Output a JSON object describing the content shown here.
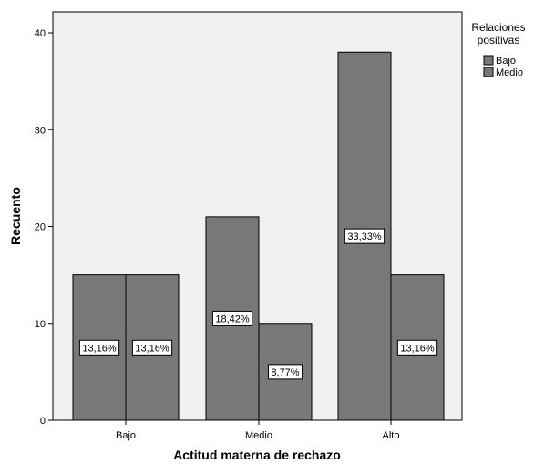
{
  "chart_data": {
    "type": "bar",
    "categories": [
      "Bajo",
      "Medio",
      "Alto"
    ],
    "series": [
      {
        "name": "Bajo",
        "values": [
          15,
          21,
          38
        ],
        "labels": [
          "13,16%",
          "18,42%",
          "33,33%"
        ]
      },
      {
        "name": "Medio",
        "values": [
          15,
          10,
          15
        ],
        "labels": [
          "13,16%",
          "8,77%",
          "13,16%"
        ]
      }
    ],
    "xlabel": "Actitud materna de rechazo",
    "ylabel": "Recuento",
    "ylim": [
      0,
      40
    ],
    "yticks": [
      0,
      10,
      20,
      30,
      40
    ],
    "grid": false,
    "legend": {
      "title_lines": [
        "Relaciones",
        "positivas"
      ],
      "placement": "right"
    },
    "colors": {
      "bar": "#787878",
      "plot_background": "#f0f0f0",
      "bar_stroke": "#000000"
    }
  }
}
